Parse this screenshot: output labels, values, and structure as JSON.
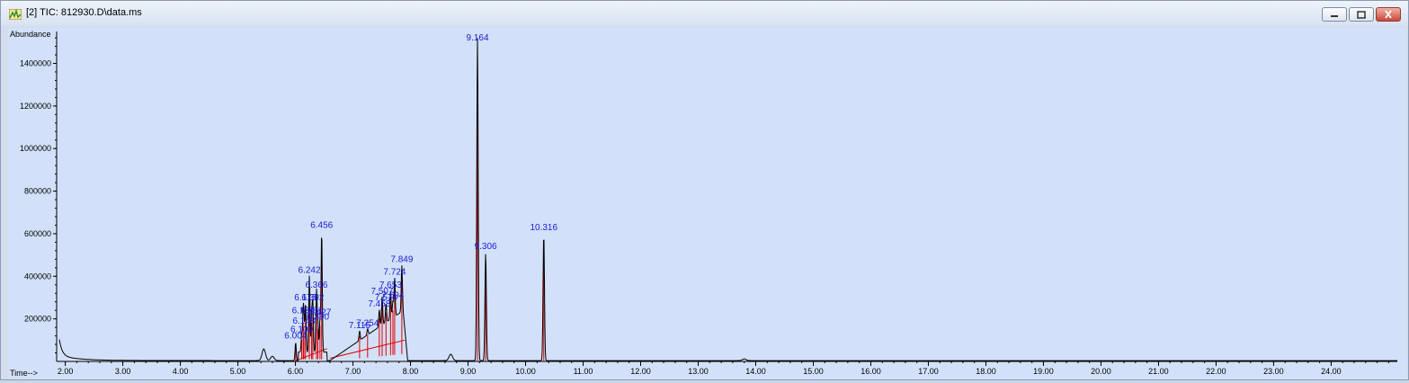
{
  "window": {
    "title": "[2] TIC: 812930.D\\data.ms",
    "controls": [
      "minimize",
      "restore",
      "close"
    ]
  },
  "colors": {
    "plot_bg": "#d2e1f9",
    "trace": "#000000",
    "peak_label": "#1a1ad6",
    "integration": "#e00000",
    "axis_text": "#000000",
    "axis_title": "#1a1ad6"
  },
  "chart_data": {
    "type": "line",
    "ylabel": "Abundance",
    "xlabel": "Time-->",
    "xlim": [
      1.85,
      25.15
    ],
    "ylim": [
      0,
      1550000
    ],
    "x_ticks": [
      "2.00",
      "3.00",
      "4.00",
      "5.00",
      "6.00",
      "7.00",
      "8.00",
      "9.00",
      "10.00",
      "11.00",
      "12.00",
      "13.00",
      "14.00",
      "15.00",
      "16.00",
      "17.00",
      "18.00",
      "19.00",
      "20.00",
      "21.00",
      "22.00",
      "23.00",
      "24.00"
    ],
    "y_ticks": [
      "200000",
      "400000",
      "600000",
      "800000",
      "1000000",
      "1200000",
      "1400000"
    ],
    "peaks": [
      {
        "label": "6.004",
        "rt": 6.004,
        "height": 90000
      },
      {
        "label": "6.109",
        "rt": 6.109,
        "height": 120000
      },
      {
        "label": "6.134",
        "rt": 6.134,
        "height": 210000
      },
      {
        "label": "6.148",
        "rt": 6.148,
        "height": 160000
      },
      {
        "label": "6.175",
        "rt": 6.175,
        "height": 270000
      },
      {
        "label": "6.242",
        "rt": 6.242,
        "height": 400000
      },
      {
        "label": "6.281",
        "rt": 6.281,
        "height": 210000
      },
      {
        "label": "6.302",
        "rt": 6.302,
        "height": 270000
      },
      {
        "label": "6.366",
        "rt": 6.366,
        "height": 330000
      },
      {
        "label": "6.390",
        "rt": 6.39,
        "height": 180000
      },
      {
        "label": "6.427",
        "rt": 6.427,
        "height": 200000
      },
      {
        "label": "6.456",
        "rt": 6.456,
        "height": 610000
      },
      {
        "label": "7.115",
        "rt": 7.115,
        "height": 140000
      },
      {
        "label": "7.254",
        "rt": 7.254,
        "height": 150000
      },
      {
        "label": "7.458",
        "rt": 7.458,
        "height": 240000
      },
      {
        "label": "7.507",
        "rt": 7.507,
        "height": 300000
      },
      {
        "label": "7.574",
        "rt": 7.574,
        "height": 270000
      },
      {
        "label": "7.653",
        "rt": 7.653,
        "height": 330000
      },
      {
        "label": "7.694",
        "rt": 7.694,
        "height": 280000
      },
      {
        "label": "7.724",
        "rt": 7.724,
        "height": 390000
      },
      {
        "label": "7.849",
        "rt": 7.849,
        "height": 450000
      },
      {
        "label": "9.164",
        "rt": 9.164,
        "height": 1520000
      },
      {
        "label": "9.306",
        "rt": 9.306,
        "height": 510000
      },
      {
        "label": "10.316",
        "rt": 10.316,
        "height": 600000
      }
    ],
    "visible_peak_labels": [
      "6.004",
      "6.109",
      "6.134",
      "6.148",
      "6.175",
      "6.242",
      "6.281",
      "6.302",
      "6.366",
      "6.390",
      "6.427",
      "6.456",
      "7.115",
      "7.254",
      "7.458",
      "7.507",
      "7.574",
      "7.653",
      "7.694",
      "7.724",
      "7.849",
      "9.164",
      "9.306",
      "10.316"
    ],
    "minor_features": [
      {
        "rt": 1.9,
        "height": 160000
      },
      {
        "rt": 5.45,
        "height": 55000
      },
      {
        "rt": 5.6,
        "height": 20000
      },
      {
        "rt": 8.7,
        "height": 30000
      },
      {
        "rt": 13.8,
        "height": 8000
      }
    ]
  }
}
